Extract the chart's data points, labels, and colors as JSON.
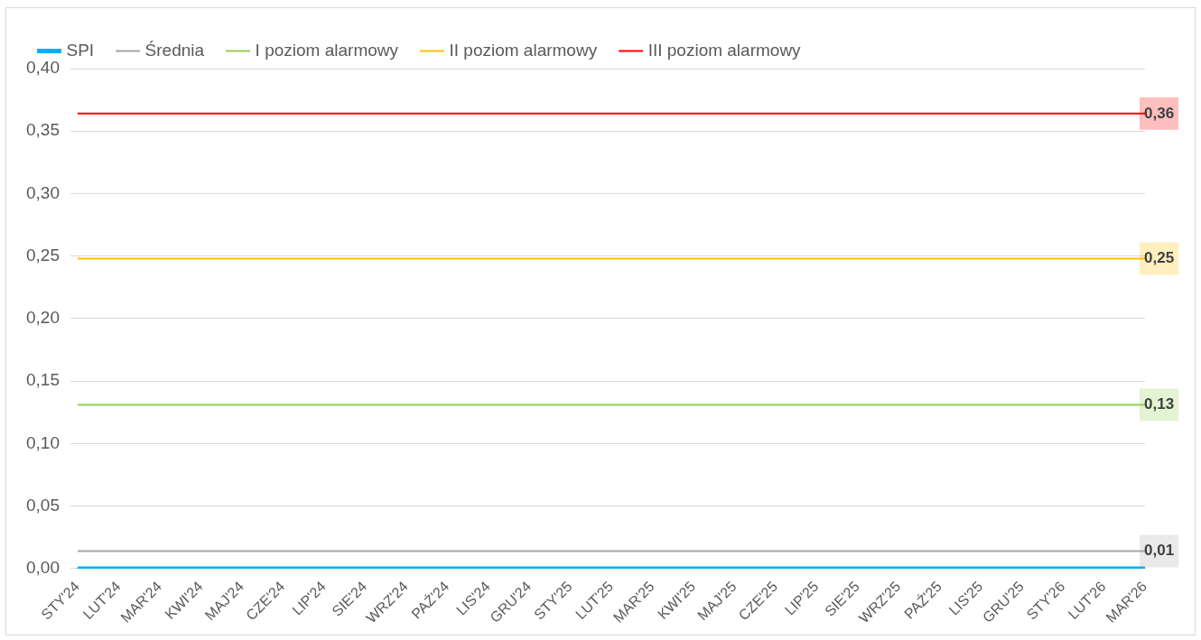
{
  "chart_data": {
    "type": "line",
    "categories": [
      "STY'24",
      "LUT'24",
      "MAR'24",
      "KWI'24",
      "MAJ'24",
      "CZE'24",
      "LIP'24",
      "SIE'24",
      "WRZ'24",
      "PAŹ'24",
      "LIS'24",
      "GRU'24",
      "STY'25",
      "LUT'25",
      "MAR'25",
      "KWI'25",
      "MAJ'25",
      "CZE'25",
      "LIP'25",
      "SIE'25",
      "WRZ'25",
      "PAŹ'25",
      "LIS'25",
      "GRU'25",
      "STY'26",
      "LUT'26",
      "MAR'26"
    ],
    "series": [
      {
        "name": "SPI",
        "color": "#00b0f0",
        "values": [
          0,
          0,
          0,
          0,
          0,
          0,
          0,
          0,
          0,
          0,
          0,
          0,
          0,
          0,
          0,
          0,
          0,
          0,
          0,
          0,
          0,
          0,
          0,
          0,
          0,
          0,
          0
        ]
      },
      {
        "name": "Średnia",
        "color": "#a6a6a6",
        "values": [
          0.014,
          0.014,
          0.014,
          0.014,
          0.014,
          0.014,
          0.014,
          0.014,
          0.014,
          0.014,
          0.014,
          0.014,
          0.014,
          0.014,
          0.014,
          0.014,
          0.014,
          0.014,
          0.014,
          0.014,
          0.014,
          0.014,
          0.014,
          0.014,
          0.014,
          0.014,
          0.014
        ],
        "value_labels": [
          null,
          null,
          null,
          null,
          null,
          null,
          null,
          null,
          null,
          null,
          null,
          null,
          null,
          null,
          null,
          null,
          null,
          null,
          null,
          null,
          null,
          null,
          null,
          null,
          null,
          null,
          "0,01"
        ]
      },
      {
        "name": "I poziom alarmowy",
        "color": "#92d050",
        "values": [
          0.131,
          0.131,
          0.131,
          0.131,
          0.131,
          0.131,
          0.131,
          0.131,
          0.131,
          0.131,
          0.131,
          0.131,
          0.131,
          0.131,
          0.131,
          0.131,
          0.131,
          0.131,
          0.131,
          0.131,
          0.131,
          0.131,
          0.131,
          0.131,
          0.131,
          0.131,
          0.131
        ],
        "value_labels": [
          null,
          null,
          null,
          null,
          null,
          null,
          null,
          null,
          null,
          null,
          null,
          null,
          null,
          null,
          null,
          null,
          null,
          null,
          null,
          null,
          null,
          null,
          null,
          null,
          null,
          null,
          "0,13"
        ]
      },
      {
        "name": "II poziom alarmowy",
        "color": "#ffc000",
        "values": [
          0.248,
          0.248,
          0.248,
          0.248,
          0.248,
          0.248,
          0.248,
          0.248,
          0.248,
          0.248,
          0.248,
          0.248,
          0.248,
          0.248,
          0.248,
          0.248,
          0.248,
          0.248,
          0.248,
          0.248,
          0.248,
          0.248,
          0.248,
          0.248,
          0.248,
          0.248,
          0.248
        ],
        "value_labels": [
          null,
          null,
          null,
          null,
          null,
          null,
          null,
          null,
          null,
          null,
          null,
          null,
          null,
          null,
          null,
          null,
          null,
          null,
          null,
          null,
          null,
          null,
          null,
          null,
          null,
          null,
          "0,25"
        ]
      },
      {
        "name": "III poziom alarmowy",
        "color": "#ff0000",
        "values": [
          0.364,
          0.364,
          0.364,
          0.364,
          0.364,
          0.364,
          0.364,
          0.364,
          0.364,
          0.364,
          0.364,
          0.364,
          0.364,
          0.364,
          0.364,
          0.364,
          0.364,
          0.364,
          0.364,
          0.364,
          0.364,
          0.364,
          0.364,
          0.364,
          0.364,
          0.364,
          0.364
        ],
        "value_labels": [
          null,
          null,
          null,
          null,
          null,
          null,
          null,
          null,
          null,
          null,
          null,
          null,
          null,
          null,
          null,
          null,
          null,
          null,
          null,
          null,
          null,
          null,
          null,
          null,
          null,
          null,
          "0,36"
        ]
      }
    ],
    "ylim": [
      0,
      0.4
    ],
    "yticks": [
      {
        "value": 0,
        "label": "0,00"
      },
      {
        "value": 0.05,
        "label": "0,05"
      },
      {
        "value": 0.1,
        "label": "0,10"
      },
      {
        "value": 0.15,
        "label": "0,15"
      },
      {
        "value": 0.2,
        "label": "0,20"
      },
      {
        "value": 0.25,
        "label": "0,25"
      },
      {
        "value": 0.3,
        "label": "0,30"
      },
      {
        "value": 0.35,
        "label": "0,35"
      },
      {
        "value": 0.4,
        "label": "0,40"
      }
    ],
    "grid": "y",
    "legend": "top",
    "marker": "none",
    "line_style": "solid"
  }
}
